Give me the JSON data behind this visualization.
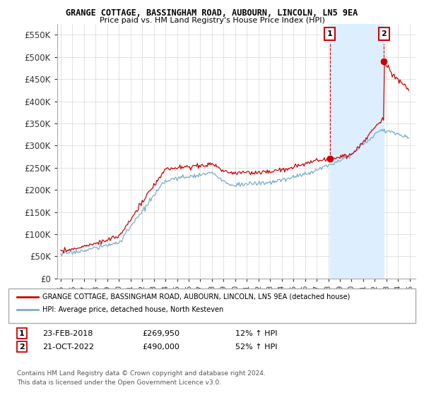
{
  "title1": "GRANGE COTTAGE, BASSINGHAM ROAD, AUBOURN, LINCOLN, LN5 9EA",
  "title2": "Price paid vs. HM Land Registry's House Price Index (HPI)",
  "ylim": [
    0,
    575000
  ],
  "yticks": [
    0,
    50000,
    100000,
    150000,
    200000,
    250000,
    300000,
    350000,
    400000,
    450000,
    500000,
    550000
  ],
  "ytick_labels": [
    "£0",
    "£50K",
    "£100K",
    "£150K",
    "£200K",
    "£250K",
    "£300K",
    "£350K",
    "£400K",
    "£450K",
    "£500K",
    "£550K"
  ],
  "xlim_min": 1994.7,
  "xlim_max": 2025.5,
  "sale1_date": 2018.12,
  "sale1_price": 269950,
  "sale1_label": "1",
  "sale2_date": 2022.79,
  "sale2_price": 490000,
  "sale2_label": "2",
  "red_line_color": "#cc0000",
  "blue_line_color": "#7aadcc",
  "shade_color": "#ddeeff",
  "background_color": "#ffffff",
  "grid_color": "#cccccc",
  "legend_box_label1": "GRANGE COTTAGE, BASSINGHAM ROAD, AUBOURN, LINCOLN, LN5 9EA (detached house)",
  "legend_box_label2": "HPI: Average price, detached house, North Kesteven",
  "footer1": "Contains HM Land Registry data © Crown copyright and database right 2024.",
  "footer2": "This data is licensed under the Open Government Licence v3.0.",
  "table_row1": [
    "1",
    "23-FEB-2018",
    "£269,950",
    "12% ↑ HPI"
  ],
  "table_row2": [
    "2",
    "21-OCT-2022",
    "£490,000",
    "52% ↑ HPI"
  ]
}
